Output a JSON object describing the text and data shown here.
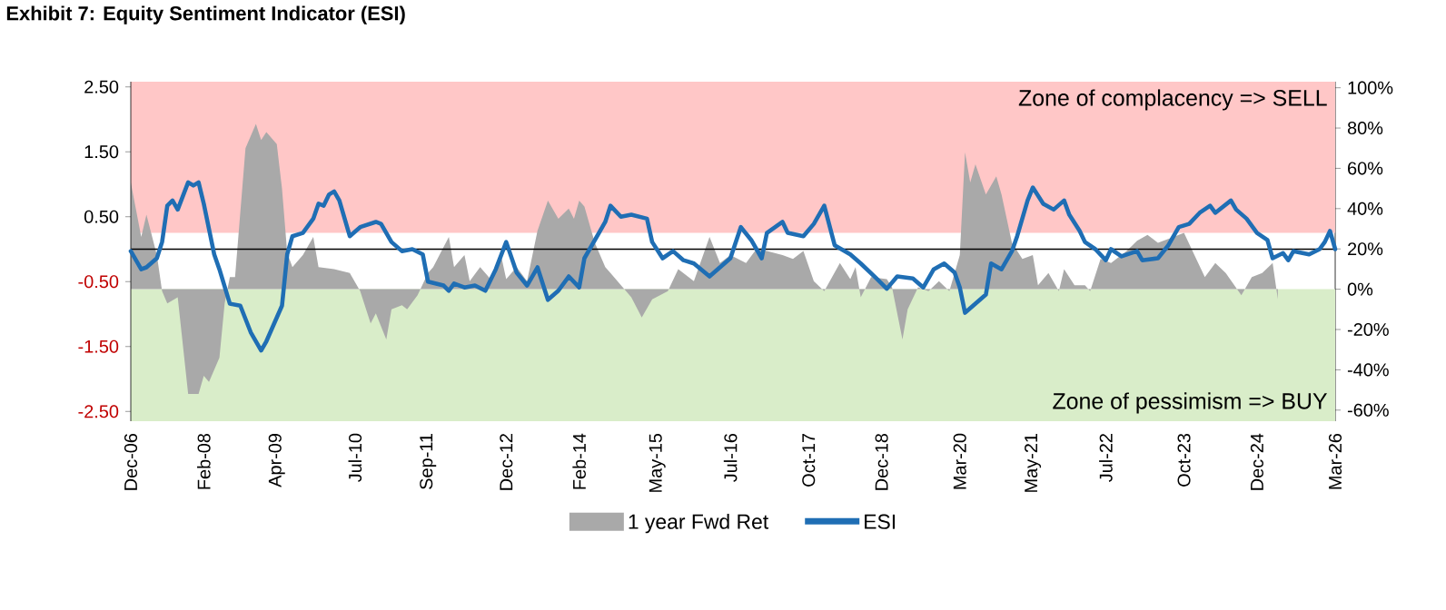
{
  "chart_data": {
    "type": "line",
    "title": "Exhibit 7: Equity Sentiment Indicator (ESI)",
    "xlim": [
      "2006-12",
      "2026-03"
    ],
    "xticks": [
      {
        "value": "2006-12",
        "label": "Dec-06"
      },
      {
        "value": "2008-02",
        "label": "Feb-08"
      },
      {
        "value": "2009-04",
        "label": "Apr-09"
      },
      {
        "value": "2010-07",
        "label": "Jul-10"
      },
      {
        "value": "2011-09",
        "label": "Sep-11"
      },
      {
        "value": "2012-12",
        "label": "Dec-12"
      },
      {
        "value": "2014-02",
        "label": "Feb-14"
      },
      {
        "value": "2015-05",
        "label": "May-15"
      },
      {
        "value": "2016-07",
        "label": "Jul-16"
      },
      {
        "value": "2017-10",
        "label": "Oct-17"
      },
      {
        "value": "2018-12",
        "label": "Dec-18"
      },
      {
        "value": "2020-03",
        "label": "Mar-20"
      },
      {
        "value": "2021-05",
        "label": "May-21"
      },
      {
        "value": "2022-07",
        "label": "Jul-22"
      },
      {
        "value": "2023-10",
        "label": "Oct-23"
      },
      {
        "value": "2024-12",
        "label": "Dec-24"
      },
      {
        "value": "2026-03",
        "label": "Mar-26"
      }
    ],
    "ylim": [
      -2.65,
      2.58
    ],
    "yticks": [
      {
        "value": -2.5,
        "label": "-2.50"
      },
      {
        "value": -1.5,
        "label": "-1.50"
      },
      {
        "value": -0.5,
        "label": "-0.50"
      },
      {
        "value": 0.5,
        "label": "0.50"
      },
      {
        "value": 1.5,
        "label": "1.50"
      },
      {
        "value": 2.5,
        "label": "2.50"
      }
    ],
    "y2lim": [
      -65.5,
      103
    ],
    "y2ticks": [
      {
        "value": -60,
        "label": "-60%"
      },
      {
        "value": -40,
        "label": "-40%"
      },
      {
        "value": -20,
        "label": "-20%"
      },
      {
        "value": 0,
        "label": "0%"
      },
      {
        "value": 20,
        "label": "20%"
      },
      {
        "value": 40,
        "label": "40%"
      },
      {
        "value": 60,
        "label": "60%"
      },
      {
        "value": 80,
        "label": "80%"
      },
      {
        "value": 100,
        "label": "100%"
      }
    ],
    "bands": [
      {
        "axis": "y2",
        "from": 28,
        "to": 103,
        "label": "Zone of complacency => SELL",
        "color": "#ffc7c7"
      },
      {
        "axis": "y2",
        "from": -65.5,
        "to": 0,
        "label": "Zone of pessimism => BUY",
        "color": "#d9edc9"
      }
    ],
    "ref_lines": [
      {
        "axis": "y",
        "value": 0,
        "color": "#000000"
      }
    ],
    "legend": "bottom",
    "series": [
      {
        "name": "1 year Fwd Ret",
        "type": "area",
        "axis": "y2",
        "color": "#a9a9a9",
        "x": [
          "2006-12",
          "2007-02",
          "2007-03",
          "2007-05",
          "2007-06",
          "2007-07",
          "2007-09",
          "2007-11",
          "2008-01",
          "2008-02",
          "2008-03",
          "2008-05",
          "2008-06",
          "2008-07",
          "2008-08",
          "2008-10",
          "2008-12",
          "2009-01",
          "2009-02",
          "2009-04",
          "2009-05",
          "2009-06",
          "2009-07",
          "2009-09",
          "2009-11",
          "2009-12",
          "2010-03",
          "2010-06",
          "2010-08",
          "2010-10",
          "2010-11",
          "2011-01",
          "2011-02",
          "2011-04",
          "2011-05",
          "2011-07",
          "2011-09",
          "2011-10",
          "2012-01",
          "2012-02",
          "2012-04",
          "2012-05",
          "2012-07",
          "2012-09",
          "2012-11",
          "2012-12",
          "2013-02",
          "2013-04",
          "2013-06",
          "2013-08",
          "2013-10",
          "2013-12",
          "2014-01",
          "2014-02",
          "2014-03",
          "2014-05",
          "2014-07",
          "2014-08",
          "2014-12",
          "2015-02",
          "2015-04",
          "2015-07",
          "2015-09",
          "2015-12",
          "2016-03",
          "2016-05",
          "2016-07",
          "2016-10",
          "2016-12",
          "2017-02",
          "2017-05",
          "2017-07",
          "2017-09",
          "2017-11",
          "2018-01",
          "2018-04",
          "2018-06",
          "2018-07",
          "2018-08",
          "2018-10",
          "2019-01",
          "2019-02",
          "2019-04",
          "2019-05",
          "2019-07",
          "2019-09",
          "2019-11",
          "2020-01",
          "2020-03",
          "2020-04",
          "2020-05",
          "2020-06",
          "2020-08",
          "2020-10",
          "2020-11",
          "2021-01",
          "2021-03",
          "2021-05",
          "2021-06",
          "2021-08",
          "2021-10",
          "2021-11",
          "2022-01",
          "2022-03",
          "2022-04",
          "2022-06",
          "2022-08",
          "2022-11",
          "2023-01",
          "2023-03",
          "2023-05",
          "2023-08",
          "2023-10",
          "2023-12",
          "2024-02",
          "2024-04",
          "2024-06",
          "2024-09",
          "2024-11",
          "2025-01",
          "2025-03",
          "2025-04"
        ],
        "values": [
          53,
          26,
          37,
          17,
          -1,
          -7,
          -4,
          -52,
          -52,
          -43,
          -46,
          -34,
          -7,
          6,
          6,
          70,
          82,
          74,
          78,
          72,
          50,
          18,
          11,
          17,
          26,
          11,
          10,
          8,
          -1,
          -17,
          -12,
          -25,
          -10,
          -8,
          -10,
          -3,
          8,
          11,
          26,
          11,
          17,
          4,
          11,
          5,
          17,
          5,
          11,
          4,
          29,
          44,
          35,
          40,
          35,
          44,
          41,
          23,
          11,
          8,
          -4,
          -14,
          -5,
          -1,
          10,
          4,
          26,
          13,
          17,
          13,
          20,
          19,
          17,
          15,
          19,
          4,
          -1,
          13,
          5,
          11,
          -4,
          6,
          5,
          1,
          -25,
          -10,
          1,
          -1,
          4,
          -1,
          17,
          68,
          53,
          62,
          47,
          56,
          47,
          23,
          15,
          17,
          2,
          8,
          -1,
          10,
          2,
          2,
          -1,
          15,
          13,
          19,
          24,
          27,
          23,
          26,
          28,
          17,
          6,
          13,
          8,
          -3,
          6,
          8,
          13,
          -5
        ]
      },
      {
        "name": "ESI",
        "type": "line",
        "color": "#1f6eb4",
        "x": [
          "2006-12",
          "2007-02",
          "2007-03",
          "2007-05",
          "2007-06",
          "2007-07",
          "2007-08",
          "2007-09",
          "2007-11",
          "2007-12",
          "2008-01",
          "2008-02",
          "2008-04",
          "2008-05",
          "2008-07",
          "2008-09",
          "2008-11",
          "2009-01",
          "2009-02",
          "2009-05",
          "2009-06",
          "2009-07",
          "2009-09",
          "2009-11",
          "2009-12",
          "2010-01",
          "2010-02",
          "2010-03",
          "2010-04",
          "2010-06",
          "2010-08",
          "2010-11",
          "2010-12",
          "2011-02",
          "2011-04",
          "2011-06",
          "2011-08",
          "2011-09",
          "2011-12",
          "2012-01",
          "2012-02",
          "2012-04",
          "2012-06",
          "2012-08",
          "2012-10",
          "2012-12",
          "2013-02",
          "2013-04",
          "2013-06",
          "2013-08",
          "2013-10",
          "2013-12",
          "2014-02",
          "2014-03",
          "2014-07",
          "2014-08",
          "2014-10",
          "2014-12",
          "2015-03",
          "2015-04",
          "2015-06",
          "2015-08",
          "2015-10",
          "2015-12",
          "2016-03",
          "2016-05",
          "2016-07",
          "2016-09",
          "2016-11",
          "2017-01",
          "2017-02",
          "2017-05",
          "2017-06",
          "2017-09",
          "2017-11",
          "2018-01",
          "2018-03",
          "2018-06",
          "2018-08",
          "2018-11",
          "2019-01",
          "2019-03",
          "2019-06",
          "2019-08",
          "2019-10",
          "2019-12",
          "2020-02",
          "2020-03",
          "2020-04",
          "2020-06",
          "2020-08",
          "2020-09",
          "2020-11",
          "2021-01",
          "2021-02",
          "2021-04",
          "2021-05",
          "2021-07",
          "2021-09",
          "2021-11",
          "2021-12",
          "2022-02",
          "2022-03",
          "2022-05",
          "2022-07",
          "2022-08",
          "2022-10",
          "2023-01",
          "2023-02",
          "2023-05",
          "2023-07",
          "2023-09",
          "2023-11",
          "2024-01",
          "2024-03",
          "2024-04",
          "2024-07",
          "2024-08",
          "2024-10",
          "2024-12",
          "2025-02",
          "2025-03",
          "2025-05",
          "2025-06",
          "2025-07",
          "2025-10",
          "2025-12",
          "2026-01",
          "2026-02",
          "2026-03"
        ],
        "values": [
          -0.03,
          -0.31,
          -0.28,
          -0.14,
          0.11,
          0.67,
          0.75,
          0.61,
          1.03,
          0.98,
          1.03,
          0.7,
          -0.08,
          -0.31,
          -0.84,
          -0.87,
          -1.28,
          -1.56,
          -1.42,
          -0.87,
          -0.08,
          0.2,
          0.25,
          0.47,
          0.7,
          0.67,
          0.84,
          0.89,
          0.75,
          0.2,
          0.34,
          0.42,
          0.39,
          0.11,
          -0.03,
          0,
          -0.08,
          -0.5,
          -0.56,
          -0.64,
          -0.53,
          -0.59,
          -0.56,
          -0.64,
          -0.31,
          0.11,
          -0.36,
          -0.56,
          -0.28,
          -0.78,
          -0.64,
          -0.42,
          -0.59,
          -0.14,
          0.42,
          0.67,
          0.5,
          0.53,
          0.47,
          0.11,
          -0.14,
          -0.03,
          -0.17,
          -0.22,
          -0.42,
          -0.28,
          -0.14,
          0.34,
          0.14,
          -0.14,
          0.25,
          0.42,
          0.25,
          0.2,
          0.39,
          0.67,
          0.06,
          -0.08,
          -0.22,
          -0.45,
          -0.61,
          -0.42,
          -0.45,
          -0.59,
          -0.31,
          -0.22,
          -0.36,
          -0.59,
          -0.98,
          -0.84,
          -0.7,
          -0.22,
          -0.31,
          -0.03,
          0.2,
          0.75,
          0.95,
          0.7,
          0.61,
          0.75,
          0.53,
          0.28,
          0.11,
          0,
          -0.17,
          0,
          -0.11,
          -0.03,
          -0.17,
          -0.14,
          0.06,
          0.34,
          0.39,
          0.56,
          0.67,
          0.56,
          0.75,
          0.61,
          0.47,
          0.25,
          0.14,
          -0.14,
          -0.06,
          -0.17,
          -0.03,
          -0.08,
          0,
          0.11,
          0.28,
          0
        ]
      }
    ]
  }
}
